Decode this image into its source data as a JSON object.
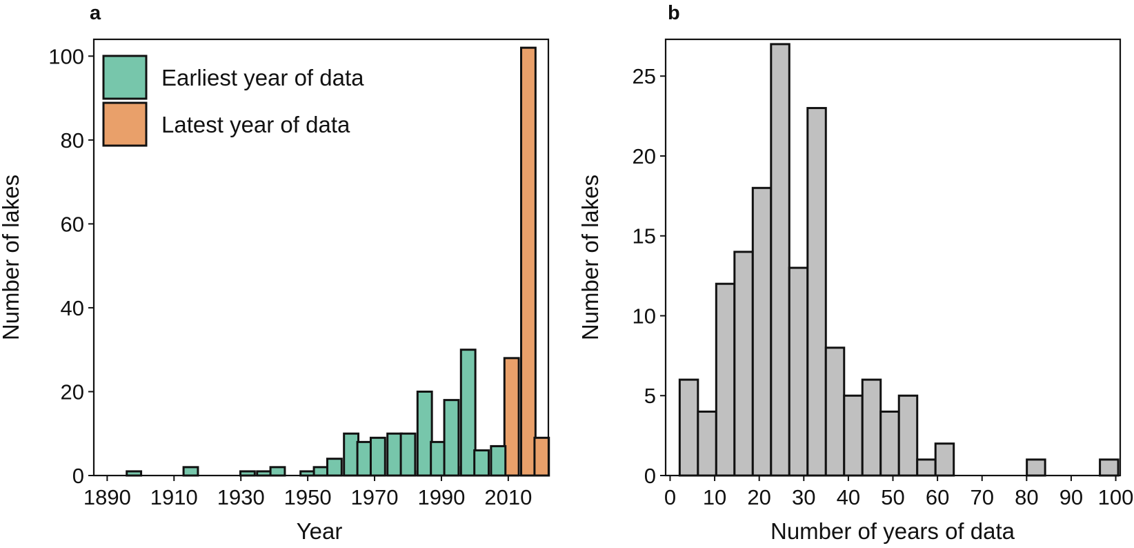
{
  "colors": {
    "earliest": "#77c6ab",
    "latest": "#e9a06a",
    "hist": "#c0c0c0",
    "stroke": "#111111"
  },
  "chart_data": [
    {
      "panel_label": "a",
      "type": "bar",
      "xlabel": "Year",
      "ylabel": "Number of lakes",
      "xlim": [
        1886,
        2022
      ],
      "ylim": [
        0,
        104
      ],
      "xticks": [
        1890,
        1910,
        1930,
        1950,
        1970,
        1990,
        2010
      ],
      "xtick_labels": [
        "1890",
        "1910",
        "1930",
        "1950",
        "1970",
        "1990",
        "2010"
      ],
      "yticks": [
        0,
        20,
        40,
        60,
        80,
        100
      ],
      "ytick_labels": [
        "0",
        "20",
        "40",
        "60",
        "80",
        "100"
      ],
      "bin_width": 4.3,
      "legend": {
        "position": "top-left",
        "entries": [
          "Earliest year of data",
          "Latest year of data"
        ]
      },
      "series": [
        {
          "name": "Latest year of data",
          "color_key": "latest",
          "bins": [
            {
              "x": 1985,
              "value": 1
            },
            {
              "x": 1998,
              "value": 2
            },
            {
              "x": 2002,
              "value": 1
            },
            {
              "x": 2007,
              "value": 7
            },
            {
              "x": 2011,
              "value": 28
            },
            {
              "x": 2016,
              "value": 102
            },
            {
              "x": 2020,
              "value": 9
            }
          ]
        },
        {
          "name": "Earliest year of data",
          "color_key": "earliest",
          "bins": [
            {
              "x": 1898,
              "value": 1
            },
            {
              "x": 1915,
              "value": 2
            },
            {
              "x": 1932,
              "value": 1
            },
            {
              "x": 1937,
              "value": 1
            },
            {
              "x": 1941,
              "value": 2
            },
            {
              "x": 1950,
              "value": 1
            },
            {
              "x": 1954,
              "value": 2
            },
            {
              "x": 1958,
              "value": 4
            },
            {
              "x": 1963,
              "value": 10
            },
            {
              "x": 1967,
              "value": 8
            },
            {
              "x": 1971,
              "value": 9
            },
            {
              "x": 1976,
              "value": 10
            },
            {
              "x": 1980,
              "value": 10
            },
            {
              "x": 1985,
              "value": 20
            },
            {
              "x": 1989,
              "value": 8
            },
            {
              "x": 1993,
              "value": 18
            },
            {
              "x": 1998,
              "value": 30
            },
            {
              "x": 2002,
              "value": 6
            },
            {
              "x": 2007,
              "value": 7
            }
          ]
        }
      ]
    },
    {
      "panel_label": "b",
      "type": "bar",
      "xlabel": "Number of years of data",
      "ylabel": "Number of lakes",
      "xlim": [
        -1,
        101
      ],
      "ylim": [
        0,
        27.3
      ],
      "xticks": [
        0,
        10,
        20,
        30,
        40,
        50,
        60,
        70,
        80,
        90,
        100
      ],
      "xtick_labels": [
        "0",
        "10",
        "20",
        "30",
        "40",
        "50",
        "60",
        "70",
        "80",
        "90",
        "100"
      ],
      "yticks": [
        0,
        5,
        10,
        15,
        20,
        25
      ],
      "ytick_labels": [
        "0",
        "5",
        "10",
        "15",
        "20",
        "25"
      ],
      "bin_width": 4.1,
      "series": [
        {
          "name": "Number of lakes",
          "color_key": "hist",
          "bins": [
            {
              "x": 4.2,
              "value": 6
            },
            {
              "x": 8.3,
              "value": 4
            },
            {
              "x": 12.4,
              "value": 12
            },
            {
              "x": 16.5,
              "value": 14
            },
            {
              "x": 20.6,
              "value": 18
            },
            {
              "x": 24.7,
              "value": 27
            },
            {
              "x": 28.8,
              "value": 13
            },
            {
              "x": 32.9,
              "value": 23
            },
            {
              "x": 37.0,
              "value": 8
            },
            {
              "x": 41.1,
              "value": 5
            },
            {
              "x": 45.2,
              "value": 6
            },
            {
              "x": 49.3,
              "value": 4
            },
            {
              "x": 53.4,
              "value": 5
            },
            {
              "x": 57.5,
              "value": 1
            },
            {
              "x": 61.6,
              "value": 2
            },
            {
              "x": 82.1,
              "value": 1
            },
            {
              "x": 98.5,
              "value": 1
            }
          ]
        }
      ]
    }
  ]
}
